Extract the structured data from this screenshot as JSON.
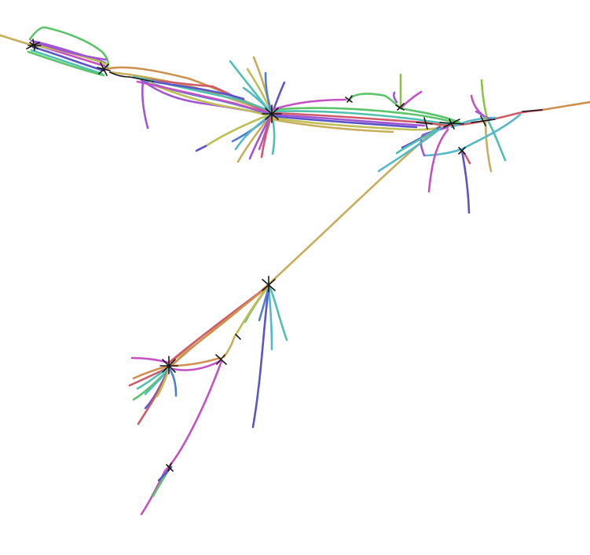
{
  "palette": {
    "gold": "#c8ad5a",
    "olive": "#bfbf55",
    "green": "#5cc46a",
    "lime": "#8cc34b",
    "teal": "#4fc0b0",
    "cyan": "#55b9c8",
    "blue": "#4f7fd0",
    "indigo": "#5a55c8",
    "violet": "#a155d2",
    "magenta": "#c552c2",
    "rose": "#cf5a6a",
    "orange": "#cf9050",
    "black": "#1a1a1a"
  },
  "diagram": {
    "type": "branching-lineage-tree",
    "node_count": 12,
    "edge_colors": [
      "gold",
      "olive",
      "green",
      "lime",
      "teal",
      "cyan",
      "blue",
      "indigo",
      "violet",
      "magenta",
      "rose",
      "orange"
    ]
  }
}
